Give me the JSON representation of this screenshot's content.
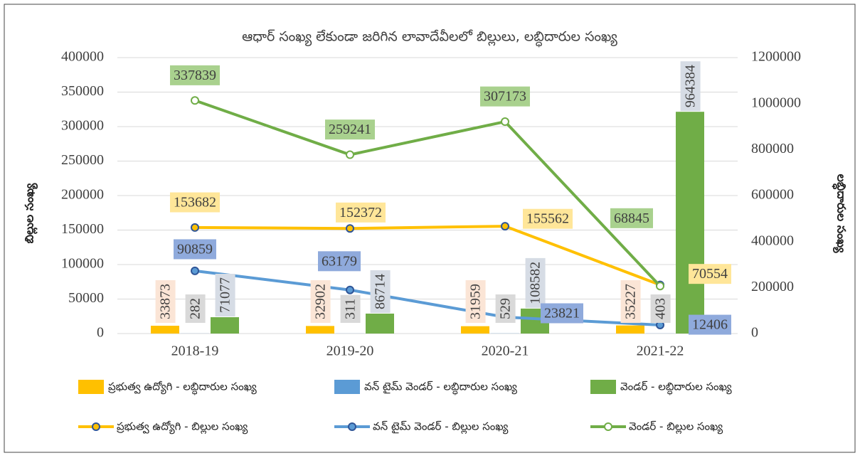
{
  "chart_data": {
    "type": "bar-line",
    "title": "ఆధార్ సంఖ్య లేకుండా జరిగిన లావాదేవీలలో బిల్లులు, లబ్ధిదారుల సంఖ్య",
    "y_label": "బిల్లుల సంఖ్య",
    "y2_label": "లబ్ధిదారుల సంఖ్య",
    "categories": [
      "2018-19",
      "2019-20",
      "2020-21",
      "2021-22"
    ],
    "ylim": [
      0,
      400000
    ],
    "yticks": [
      0,
      50000,
      100000,
      150000,
      200000,
      250000,
      300000,
      350000,
      400000
    ],
    "y2lim": [
      0,
      1200000
    ],
    "y2ticks": [
      0,
      200000,
      400000,
      600000,
      800000,
      1000000,
      1200000
    ],
    "grid": true,
    "series": [
      {
        "name": "ప్రభుత్వ ఉద్యోగి - లబ్ధిదారుల సంఖ్య",
        "kind": "bar",
        "axis": "y2",
        "color": "#ffc000",
        "values": [
          33873,
          32902,
          31959,
          35227
        ]
      },
      {
        "name": "వన్ టైమ్ వెండర్ - లబ్ధిదారుల సంఖ్య",
        "kind": "bar",
        "axis": "y2",
        "color": "#5b9bd5",
        "values": [
          282,
          311,
          529,
          403
        ]
      },
      {
        "name": "వెండర్ - లబ్ధిదారుల సంఖ్య",
        "kind": "bar",
        "axis": "y2",
        "color": "#70ad47",
        "values": [
          71077,
          86714,
          108582,
          964384
        ]
      },
      {
        "name": "ప్రభుత్వ ఉద్యోగి - బిల్లుల సంఖ్య",
        "kind": "line",
        "color": "#ffc000",
        "values": [
          153682,
          152372,
          155562,
          70554
        ]
      },
      {
        "name": "వన్ టైమ్ వెండర్ - బిల్లుల సంఖ్య",
        "kind": "line",
        "color": "#5b9bd5",
        "values": [
          90859,
          63179,
          23821,
          12406
        ]
      },
      {
        "name": "వెండర్ - బిల్లుల సంఖ్య",
        "kind": "line",
        "color": "#70ad47",
        "values": [
          337839,
          259241,
          307173,
          68845
        ]
      }
    ]
  }
}
